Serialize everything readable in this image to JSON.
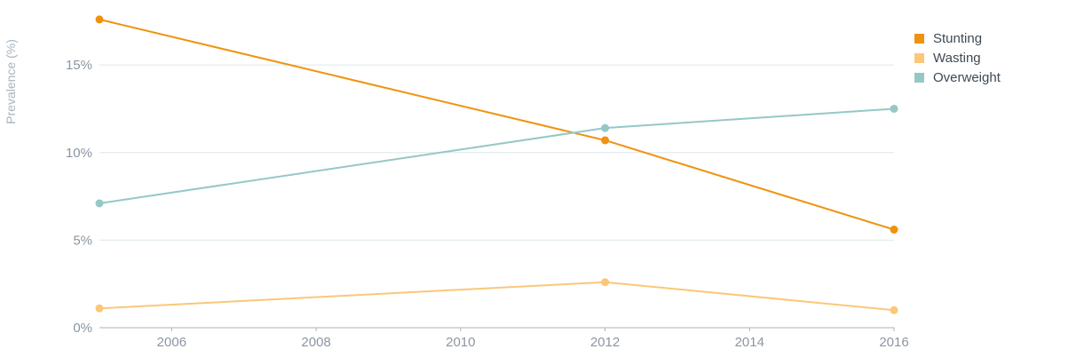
{
  "chart_data": {
    "type": "line",
    "ylabel": "Prevalence (%)",
    "xlim": [
      2005,
      2016
    ],
    "ylim": [
      0,
      18
    ],
    "x_ticks": [
      "2006",
      "2008",
      "2010",
      "2012",
      "2014",
      "2016"
    ],
    "y_ticks": [
      "0%",
      "5%",
      "10%",
      "15%"
    ],
    "grid": "horizontal",
    "legend_position": "top-right",
    "series": [
      {
        "name": "Stunting",
        "color": "#f0920f",
        "x": [
          2005,
          2012,
          2016
        ],
        "y": [
          17.6,
          10.7,
          5.6
        ]
      },
      {
        "name": "Wasting",
        "color": "#fbc778",
        "x": [
          2005,
          2012,
          2016
        ],
        "y": [
          1.1,
          2.6,
          1.0
        ]
      },
      {
        "name": "Overweight",
        "color": "#95c8c5",
        "x": [
          2005,
          2012,
          2016
        ],
        "y": [
          7.1,
          11.4,
          12.5
        ]
      }
    ]
  }
}
